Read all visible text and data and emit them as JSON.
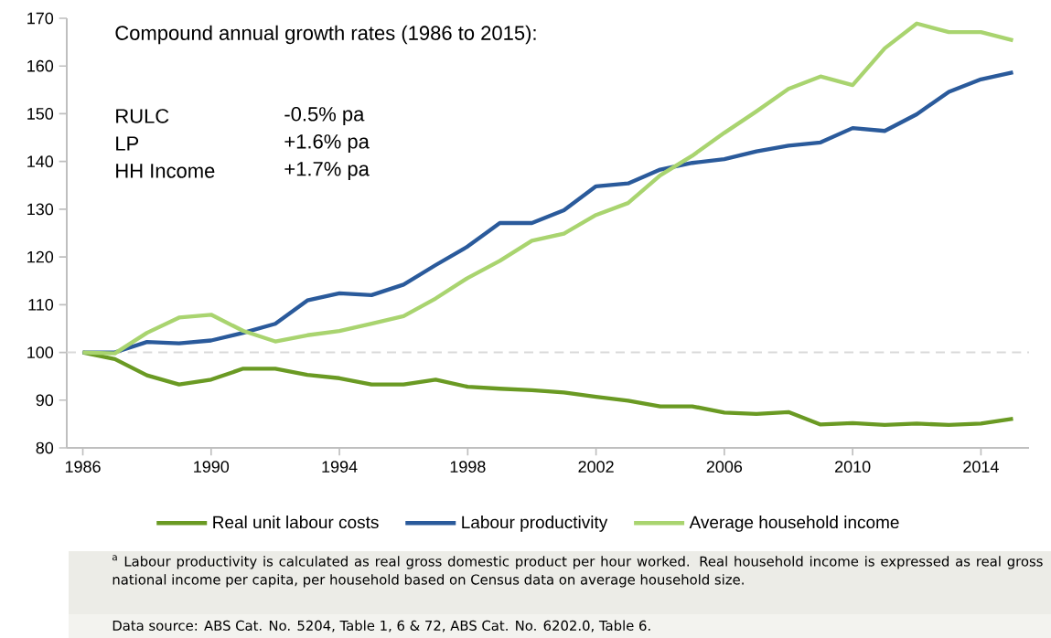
{
  "chart_data": {
    "type": "line",
    "x": [
      1986,
      1987,
      1988,
      1989,
      1990,
      1991,
      1992,
      1993,
      1994,
      1995,
      1996,
      1997,
      1998,
      1999,
      2000,
      2001,
      2002,
      2003,
      2004,
      2005,
      2006,
      2007,
      2008,
      2009,
      2010,
      2011,
      2012,
      2013,
      2014,
      2015
    ],
    "series": [
      {
        "name": "Real unit labour costs",
        "color": "#6a9a23",
        "values": [
          100,
          98.6,
          95.2,
          93.3,
          94.3,
          96.6,
          96.6,
          95.3,
          94.6,
          93.3,
          93.3,
          94.3,
          92.8,
          92.4,
          92.1,
          91.6,
          90.7,
          89.9,
          88.7,
          88.7,
          87.4,
          87.1,
          87.5,
          84.9,
          85.2,
          84.8,
          85.1,
          84.8,
          85.1,
          86.1
        ]
      },
      {
        "name": "Labour productivity",
        "color": "#2a5a9b",
        "values": [
          100,
          100,
          102.2,
          101.9,
          102.5,
          104.1,
          106,
          110.9,
          112.4,
          112,
          114.2,
          118.3,
          122.2,
          127.1,
          127.1,
          129.8,
          134.8,
          135.4,
          138.3,
          139.7,
          140.5,
          142.1,
          143.3,
          144,
          147,
          146.4,
          149.9,
          154.6,
          157.2,
          158.7
        ]
      },
      {
        "name": "Average household income",
        "color": "#a9d46f",
        "values": [
          100,
          99.8,
          104.1,
          107.3,
          107.9,
          104.5,
          102.3,
          103.6,
          104.5,
          106,
          107.6,
          111.3,
          115.6,
          119.2,
          123.4,
          124.9,
          128.8,
          131.3,
          137.1,
          141.2,
          146,
          150.5,
          155.2,
          157.8,
          156,
          163.7,
          168.9,
          167.1,
          167.1,
          165.4
        ]
      }
    ],
    "xlim": [
      1985.5,
      2015.5
    ],
    "xticks": [
      1986,
      1990,
      1994,
      1998,
      2002,
      2006,
      2010,
      2014
    ],
    "ylim": [
      80,
      170
    ],
    "yticks": [
      80,
      90,
      100,
      110,
      120,
      130,
      140,
      150,
      160,
      170
    ],
    "ref_lines": [
      {
        "axis": "y",
        "value": 100,
        "color": "#d9d9d9",
        "line_style": "dashed"
      }
    ],
    "legend": "bottom",
    "annotations": [
      "Compound annual growth rates (1986 to 2015):",
      "RULC",
      "-0.5% pa",
      "LP",
      "+1.6% pa",
      "HH Income",
      "+1.7% pa",
      "$^{a}$ Labour productivity is calculated as real gross domestic product per hour worked. Real household income is expressed as real gross national income per capita, per household based on Census data on average household size.",
      "Data source: ABS Cat. No. 5204, Table 1, 6 & 72, ABS Cat. No. 6202.0, Table 6."
    ]
  }
}
